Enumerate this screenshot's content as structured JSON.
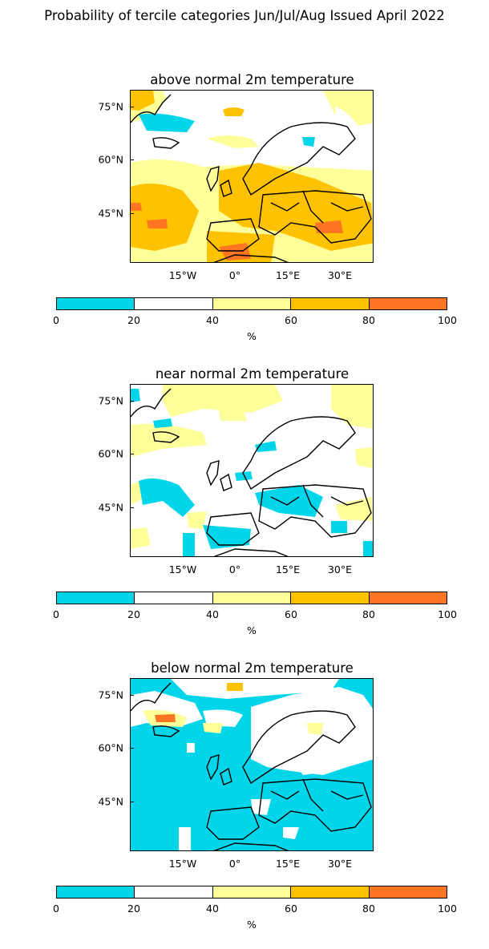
{
  "title": "Probability of tercile categories Jun/Jul/Aug Issued April 2022",
  "lat_labels": [
    "75°N",
    "60°N",
    "45°N"
  ],
  "lon_labels": [
    "15°W",
    "0°",
    "15°E",
    "30°E"
  ],
  "colorbar": {
    "ticks": [
      "0",
      "20",
      "40",
      "60",
      "80",
      "100"
    ],
    "unit": "%",
    "colors": [
      "#00d5ea",
      "#ffffff",
      "#ffff99",
      "#ffc200",
      "#ff7521"
    ]
  },
  "colors": {
    "cyan": "#00d5ea",
    "white": "#ffffff",
    "light_yellow": "#ffff99",
    "gold": "#ffc200",
    "orange": "#ff7521",
    "coastline": "#000000"
  },
  "panels": [
    {
      "title": "above normal 2m temperature",
      "pattern": "above",
      "dominant_category": "40-60 and 60-80 over most of Europe"
    },
    {
      "title": "near normal 2m temperature",
      "pattern": "near",
      "dominant_category": "20-40 over most of the domain"
    },
    {
      "title": "below normal 2m temperature",
      "pattern": "below",
      "dominant_category": "0-20 over most of the domain"
    }
  ],
  "icons": {
    "map": "europe-map-icon"
  }
}
